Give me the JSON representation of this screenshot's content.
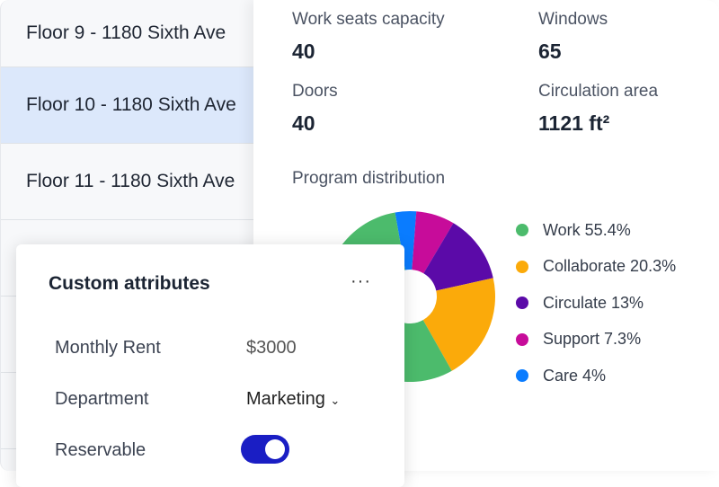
{
  "floors": [
    {
      "label": "Floor 9 - 1180 Sixth Ave"
    },
    {
      "label": "Floor 10 - 1180 Sixth Ave"
    },
    {
      "label": "Floor 11 - 1180 Sixth Ave"
    },
    {
      "label": ""
    },
    {
      "label": ""
    },
    {
      "label": ""
    }
  ],
  "stats": {
    "work_seats_label": "Work seats capacity",
    "work_seats_value": "40",
    "windows_label": "Windows",
    "windows_value": "65",
    "doors_label": "Doors",
    "doors_value": "40",
    "circulation_label": "Circulation area",
    "circulation_value": "1121 ft²"
  },
  "chart_data": {
    "type": "pie",
    "title": "Program distribution",
    "series": [
      {
        "name": "Work",
        "value": 55.4,
        "label": "Work 55.4%",
        "color": "#4cbb6c"
      },
      {
        "name": "Collaborate",
        "value": 20.3,
        "label": "Collaborate 20.3%",
        "color": "#fbaa0a"
      },
      {
        "name": "Circulate",
        "value": 13,
        "label": "Circulate 13%",
        "color": "#5b0aa8"
      },
      {
        "name": "Support",
        "value": 7.3,
        "label": "Support 7.3%",
        "color": "#c70c9a"
      },
      {
        "name": "Care",
        "value": 4,
        "label": "Care 4%",
        "color": "#0a7cff"
      }
    ]
  },
  "attributes": {
    "title": "Custom attributes",
    "more": "···",
    "rent_label": "Monthly Rent",
    "rent_value": "$3000",
    "dept_label": "Department",
    "dept_value": "Marketing",
    "reservable_label": "Reservable",
    "reservable_on": true
  }
}
